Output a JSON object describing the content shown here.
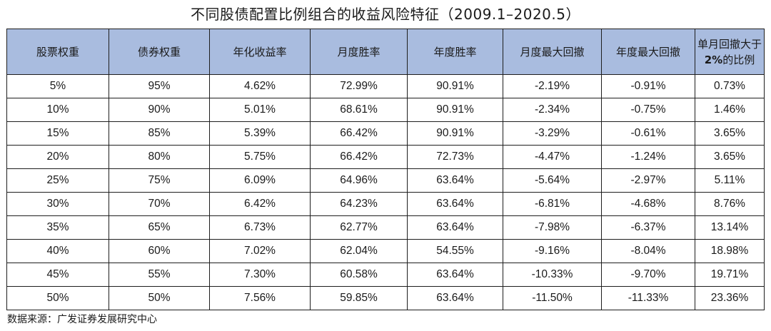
{
  "title": "不同股债配置比例组合的收益风险特征（2009.1–2020.5）",
  "table": {
    "headers": [
      "股票权重",
      "债券权重",
      "年化收益率",
      "月度胜率",
      "年度胜率",
      "月度最大回撤",
      "年度最大回撤"
    ],
    "last_header_line1": "单月回撤大于",
    "last_header_bold": "2%",
    "last_header_rest": "的比例",
    "rows": [
      [
        "5%",
        "95%",
        "4.62%",
        "72.99%",
        "90.91%",
        "-2.19%",
        "-0.91%",
        "0.73%"
      ],
      [
        "10%",
        "90%",
        "5.01%",
        "68.61%",
        "90.91%",
        "-2.34%",
        "-0.75%",
        "1.46%"
      ],
      [
        "15%",
        "85%",
        "5.39%",
        "66.42%",
        "90.91%",
        "-3.29%",
        "-0.61%",
        "3.65%"
      ],
      [
        "20%",
        "80%",
        "5.75%",
        "66.42%",
        "72.73%",
        "-4.47%",
        "-1.24%",
        "3.65%"
      ],
      [
        "25%",
        "75%",
        "6.09%",
        "64.96%",
        "63.64%",
        "-5.64%",
        "-2.97%",
        "5.11%"
      ],
      [
        "30%",
        "70%",
        "6.42%",
        "64.23%",
        "63.64%",
        "-6.81%",
        "-4.68%",
        "8.76%"
      ],
      [
        "35%",
        "65%",
        "6.73%",
        "62.77%",
        "63.64%",
        "-7.98%",
        "-6.37%",
        "13.14%"
      ],
      [
        "40%",
        "60%",
        "7.02%",
        "62.04%",
        "54.55%",
        "-9.16%",
        "-8.04%",
        "18.98%"
      ],
      [
        "45%",
        "55%",
        "7.30%",
        "60.58%",
        "63.64%",
        "-10.33%",
        "-9.70%",
        "19.71%"
      ],
      [
        "50%",
        "50%",
        "7.56%",
        "59.85%",
        "63.64%",
        "-11.50%",
        "-11.33%",
        "23.36%"
      ]
    ]
  },
  "source": "数据来源：广发证券发展研究中心",
  "colors": {
    "header_bg": "#a9bcdf",
    "border": "#1e1e1e"
  }
}
